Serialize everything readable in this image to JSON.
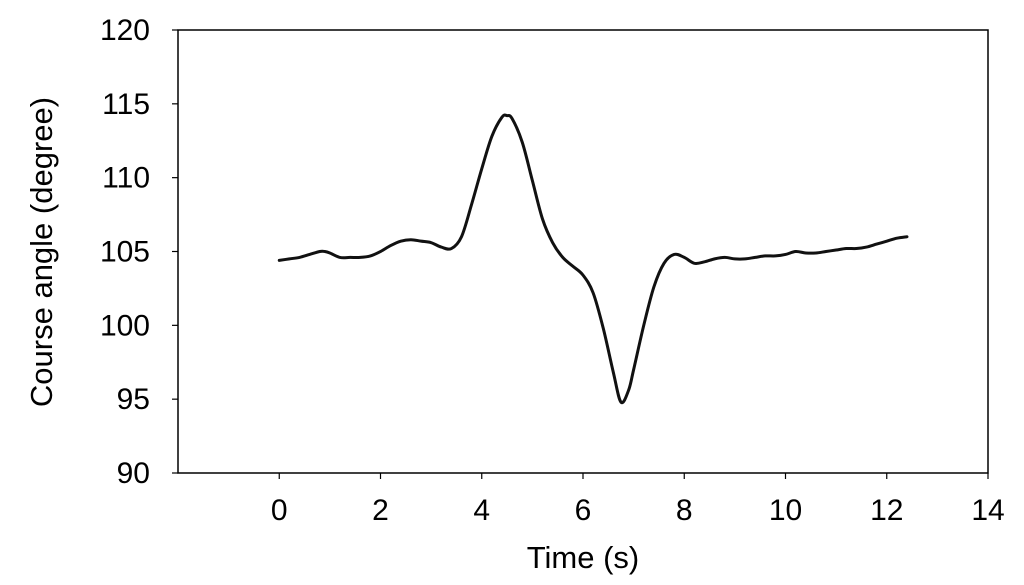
{
  "chart_data": {
    "type": "line",
    "title": "",
    "xlabel": "Time (s)",
    "ylabel": "Course angle (degree)",
    "xlim": [
      -2,
      14
    ],
    "ylim": [
      90,
      120
    ],
    "xticks": [
      0,
      2,
      4,
      6,
      8,
      10,
      12,
      14
    ],
    "yticks": [
      90,
      95,
      100,
      105,
      110,
      115,
      120
    ],
    "xtick_labels": [
      "0",
      "2",
      "4",
      "6",
      "8",
      "10",
      "12",
      "14"
    ],
    "ytick_labels": [
      "90",
      "95",
      "100",
      "105",
      "110",
      "115",
      "120"
    ],
    "grid": false,
    "legend": "none",
    "line_color": "#111111",
    "series": [
      {
        "x": [
          0,
          0.2,
          0.4,
          0.6,
          0.8,
          0.9,
          1.0,
          1.2,
          1.4,
          1.6,
          1.8,
          2.0,
          2.2,
          2.4,
          2.6,
          2.8,
          3.0,
          3.2,
          3.4,
          3.6,
          3.8,
          4.0,
          4.2,
          4.4,
          4.5,
          4.6,
          4.8,
          5.0,
          5.2,
          5.4,
          5.6,
          5.8,
          6.0,
          6.2,
          6.4,
          6.6,
          6.75,
          6.9,
          7.0,
          7.2,
          7.4,
          7.6,
          7.8,
          8.0,
          8.2,
          8.4,
          8.6,
          8.8,
          9.0,
          9.2,
          9.4,
          9.6,
          9.8,
          10.0,
          10.2,
          10.4,
          10.6,
          10.8,
          11.0,
          11.2,
          11.4,
          11.6,
          11.8,
          12.0,
          12.2,
          12.4
        ],
        "values": [
          104.4,
          104.5,
          104.6,
          104.8,
          105.0,
          105.0,
          104.9,
          104.6,
          104.6,
          104.6,
          104.7,
          105.0,
          105.4,
          105.7,
          105.8,
          105.7,
          105.6,
          105.3,
          105.2,
          106.0,
          108.2,
          110.6,
          112.8,
          114.1,
          114.2,
          114.0,
          112.4,
          109.8,
          107.2,
          105.6,
          104.6,
          104.0,
          103.4,
          102.2,
          99.8,
          96.8,
          94.8,
          95.6,
          97.0,
          100.0,
          102.6,
          104.2,
          104.8,
          104.6,
          104.2,
          104.3,
          104.5,
          104.6,
          104.5,
          104.5,
          104.6,
          104.7,
          104.7,
          104.8,
          105.0,
          104.9,
          104.9,
          105.0,
          105.1,
          105.2,
          105.2,
          105.3,
          105.5,
          105.7,
          105.9,
          106.0
        ]
      }
    ]
  }
}
